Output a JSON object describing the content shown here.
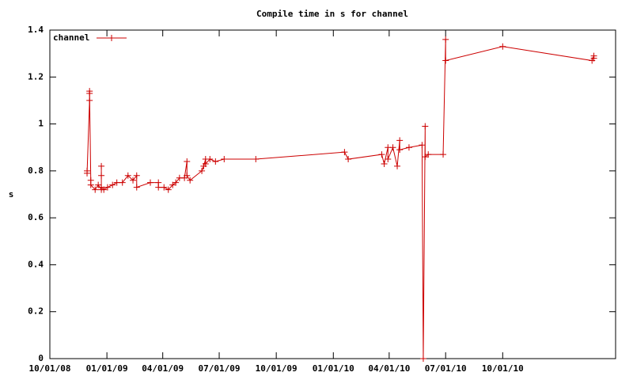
{
  "chart_data": {
    "type": "line",
    "title": "Compile time in s for channel",
    "y_label": "s",
    "x": [
      "2008-11-30",
      "2008-11-30",
      "2008-12-04",
      "2008-12-04",
      "2008-12-04",
      "2008-12-06",
      "2008-12-06",
      "2008-12-13",
      "2008-12-18",
      "2008-12-23",
      "2008-12-23",
      "2008-12-23",
      "2008-12-23",
      "2008-12-27",
      "2009-01-02",
      "2009-01-10",
      "2009-01-17",
      "2009-01-26",
      "2009-02-04",
      "2009-02-12",
      "2009-02-18",
      "2009-02-18",
      "2009-03-12",
      "2009-03-25",
      "2009-03-25",
      "2009-04-03",
      "2009-04-10",
      "2009-04-17",
      "2009-04-22",
      "2009-04-28",
      "2009-05-06",
      "2009-05-10",
      "2009-05-10",
      "2009-05-15",
      "2009-06-03",
      "2009-06-06",
      "2009-06-09",
      "2009-06-09",
      "2009-06-16",
      "2009-06-25",
      "2009-07-09",
      "2009-08-29",
      "2010-01-19",
      "2010-01-25",
      "2010-03-20",
      "2010-03-24",
      "2010-03-30",
      "2010-03-30",
      "2010-04-07",
      "2010-04-14",
      "2010-04-18",
      "2010-04-18",
      "2010-05-03",
      "2010-05-24",
      "2010-05-26",
      "2010-05-29",
      "2010-05-29",
      "2010-06-03",
      "2010-06-27",
      "2010-07-01",
      "2010-07-01",
      "2010-10-01",
      "2011-02-22",
      "2011-02-25",
      "2011-02-25"
    ],
    "series": [
      {
        "name": "channel",
        "color": "#cc0000",
        "values": [
          0.8,
          0.79,
          1.1,
          1.13,
          1.14,
          0.76,
          0.74,
          0.72,
          0.74,
          0.72,
          0.78,
          0.82,
          0.73,
          0.72,
          0.73,
          0.74,
          0.75,
          0.75,
          0.78,
          0.76,
          0.78,
          0.73,
          0.75,
          0.75,
          0.73,
          0.73,
          0.72,
          0.74,
          0.75,
          0.77,
          0.77,
          0.84,
          0.78,
          0.76,
          0.8,
          0.82,
          0.85,
          0.83,
          0.85,
          0.84,
          0.85,
          0.85,
          0.88,
          0.85,
          0.87,
          0.83,
          0.9,
          0.85,
          0.9,
          0.82,
          0.93,
          0.89,
          0.9,
          0.91,
          0,
          0.99,
          0.86,
          0.87,
          0.87,
          1.36,
          1.27,
          1.33,
          1.27,
          1.29,
          1.28
        ]
      }
    ],
    "xlim": [
      "2008-10-01",
      "2011-04-01"
    ],
    "xticks": [
      {
        "value": "2008-10-01",
        "label": "10/01/08"
      },
      {
        "value": "2009-01-01",
        "label": "01/01/09"
      },
      {
        "value": "2009-04-01",
        "label": "04/01/09"
      },
      {
        "value": "2009-07-01",
        "label": "07/01/09"
      },
      {
        "value": "2009-10-01",
        "label": "10/01/09"
      },
      {
        "value": "2010-01-01",
        "label": "01/01/10"
      },
      {
        "value": "2010-04-01",
        "label": "04/01/10"
      },
      {
        "value": "2010-07-01",
        "label": "07/01/10"
      },
      {
        "value": "2010-10-01",
        "label": "10/01/10"
      }
    ],
    "ylim": [
      0,
      1.4
    ],
    "yticks": [
      0,
      0.2,
      0.4,
      0.6,
      0.8,
      1,
      1.2,
      1.4
    ],
    "legend": "top-left"
  }
}
